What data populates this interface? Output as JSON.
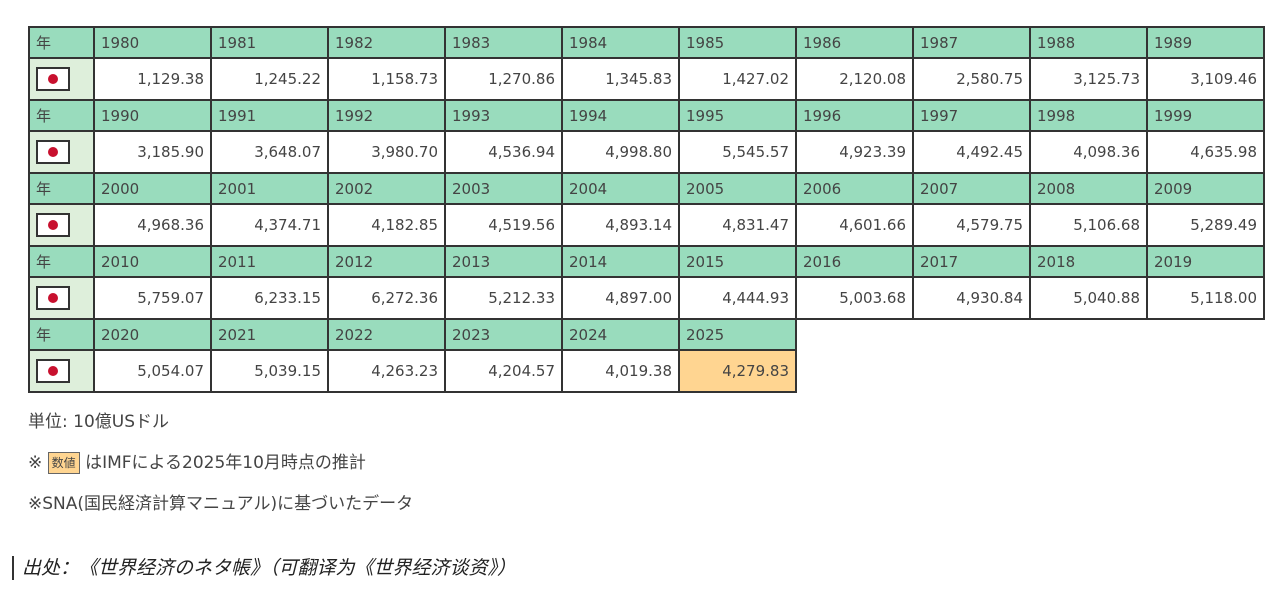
{
  "table": {
    "year_label": "年",
    "country_flag": "japan-flag-icon",
    "header_color": "#99dcbd",
    "estimate_color": "#ffd591",
    "blocks": [
      {
        "years": [
          "1980",
          "1981",
          "1982",
          "1983",
          "1984",
          "1985",
          "1986",
          "1987",
          "1988",
          "1989"
        ],
        "values": [
          "1,129.38",
          "1,245.22",
          "1,158.73",
          "1,270.86",
          "1,345.83",
          "1,427.02",
          "2,120.08",
          "2,580.75",
          "3,125.73",
          "3,109.46"
        ]
      },
      {
        "years": [
          "1990",
          "1991",
          "1992",
          "1993",
          "1994",
          "1995",
          "1996",
          "1997",
          "1998",
          "1999"
        ],
        "values": [
          "3,185.90",
          "3,648.07",
          "3,980.70",
          "4,536.94",
          "4,998.80",
          "5,545.57",
          "4,923.39",
          "4,492.45",
          "4,098.36",
          "4,635.98"
        ]
      },
      {
        "years": [
          "2000",
          "2001",
          "2002",
          "2003",
          "2004",
          "2005",
          "2006",
          "2007",
          "2008",
          "2009"
        ],
        "values": [
          "4,968.36",
          "4,374.71",
          "4,182.85",
          "4,519.56",
          "4,893.14",
          "4,831.47",
          "4,601.66",
          "4,579.75",
          "5,106.68",
          "5,289.49"
        ]
      },
      {
        "years": [
          "2010",
          "2011",
          "2012",
          "2013",
          "2014",
          "2015",
          "2016",
          "2017",
          "2018",
          "2019"
        ],
        "values": [
          "5,759.07",
          "6,233.15",
          "6,272.36",
          "5,212.33",
          "4,897.00",
          "4,444.93",
          "5,003.68",
          "4,930.84",
          "5,040.88",
          "5,118.00"
        ]
      },
      {
        "years": [
          "2020",
          "2021",
          "2022",
          "2023",
          "2024",
          "2025"
        ],
        "values": [
          "5,054.07",
          "5,039.15",
          "4,263.23",
          "4,204.57",
          "4,019.38",
          "4,279.83"
        ],
        "estimated_years": [
          "2025"
        ]
      }
    ]
  },
  "notes": {
    "unit": "単位: 10億USドル",
    "estimate_prefix": "※",
    "estimate_badge": "数値",
    "estimate_text": "はIMFによる2025年10月時点の推計",
    "sna": "※SNA(国民経済計算マニュアル)に基づいたデータ"
  },
  "source": "出处：《世界经济のネタ帳》（可翻译为《世界经济谈资》）"
}
